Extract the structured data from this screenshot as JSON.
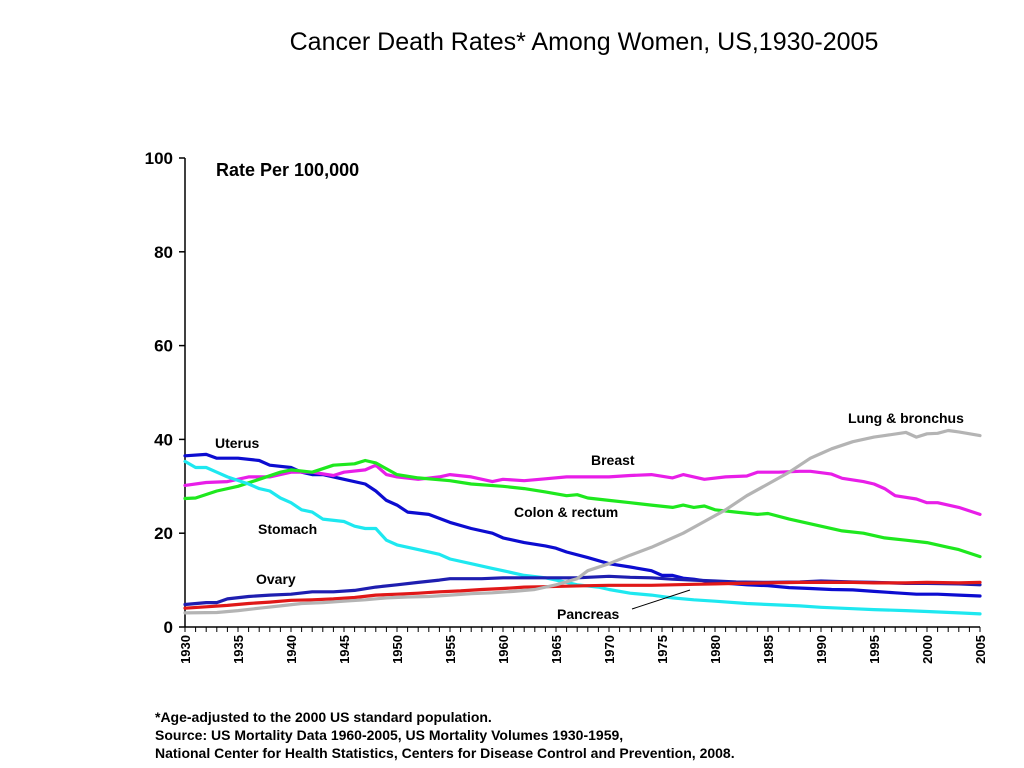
{
  "title": "Cancer Death Rates* Among Women, US,1930-2005",
  "footnote": {
    "line1": "*Age-adjusted to the 2000 US standard population.",
    "line2": "Source:  US Mortality Data 1960-2005, US Mortality Volumes 1930-1959,",
    "line3": "National Center for Health Statistics, Centers for Disease Control and Prevention, 2008."
  },
  "chart_data": {
    "type": "line",
    "title": "Cancer Death Rates* Among Women, US,1930-2005",
    "ylabel": "Rate Per 100,000",
    "xlabel": "",
    "ylim": [
      0,
      100
    ],
    "xlim": [
      1930,
      2005
    ],
    "yticks": [
      0,
      20,
      40,
      60,
      80,
      100
    ],
    "xticks": [
      1930,
      1935,
      1940,
      1945,
      1950,
      1955,
      1960,
      1965,
      1970,
      1975,
      1980,
      1985,
      1990,
      1995,
      2000,
      2005
    ],
    "grid": false,
    "legend": "inline labels",
    "series": [
      {
        "name": "Uterus",
        "color": "#0c0cd0",
        "points": [
          [
            1930,
            36.5
          ],
          [
            1932,
            36.8
          ],
          [
            1933,
            36
          ],
          [
            1935,
            36
          ],
          [
            1937,
            35.5
          ],
          [
            1938,
            34.5
          ],
          [
            1940,
            34
          ],
          [
            1941,
            33
          ],
          [
            1942,
            32.5
          ],
          [
            1943,
            32.5
          ],
          [
            1945,
            31.5
          ],
          [
            1947,
            30.5
          ],
          [
            1948,
            29
          ],
          [
            1949,
            27
          ],
          [
            1950,
            26
          ],
          [
            1951,
            24.5
          ],
          [
            1953,
            24
          ],
          [
            1955,
            22.3
          ],
          [
            1957,
            21
          ],
          [
            1959,
            20
          ],
          [
            1960,
            19
          ],
          [
            1962,
            18
          ],
          [
            1964,
            17.3
          ],
          [
            1965,
            16.8
          ],
          [
            1966,
            16
          ],
          [
            1968,
            14.8
          ],
          [
            1970,
            13.5
          ],
          [
            1972,
            12.8
          ],
          [
            1974,
            12
          ],
          [
            1975,
            11
          ],
          [
            1976,
            11
          ],
          [
            1977,
            10.4
          ],
          [
            1978,
            10.2
          ],
          [
            1980,
            9.5
          ],
          [
            1983,
            9
          ],
          [
            1985,
            8.8
          ],
          [
            1987,
            8.4
          ],
          [
            1989,
            8.2
          ],
          [
            1991,
            8
          ],
          [
            1993,
            7.9
          ],
          [
            1995,
            7.6
          ],
          [
            1997,
            7.3
          ],
          [
            1999,
            7
          ],
          [
            2001,
            7
          ],
          [
            2003,
            6.8
          ],
          [
            2005,
            6.6
          ]
        ]
      },
      {
        "name": "Breast",
        "color": "#e81ee8",
        "points": [
          [
            1930,
            30.2
          ],
          [
            1932,
            30.8
          ],
          [
            1934,
            31
          ],
          [
            1936,
            32
          ],
          [
            1938,
            32
          ],
          [
            1940,
            33
          ],
          [
            1942,
            33
          ],
          [
            1944,
            32.3
          ],
          [
            1945,
            33
          ],
          [
            1947,
            33.5
          ],
          [
            1948,
            34.5
          ],
          [
            1949,
            32.5
          ],
          [
            1950,
            32
          ],
          [
            1952,
            31.5
          ],
          [
            1954,
            32
          ],
          [
            1955,
            32.5
          ],
          [
            1957,
            32
          ],
          [
            1959,
            31
          ],
          [
            1960,
            31.5
          ],
          [
            1962,
            31.2
          ],
          [
            1964,
            31.6
          ],
          [
            1966,
            32
          ],
          [
            1968,
            32
          ],
          [
            1970,
            32
          ],
          [
            1972,
            32.3
          ],
          [
            1974,
            32.5
          ],
          [
            1976,
            31.8
          ],
          [
            1977,
            32.5
          ],
          [
            1979,
            31.5
          ],
          [
            1981,
            32
          ],
          [
            1983,
            32.2
          ],
          [
            1984,
            33
          ],
          [
            1986,
            33
          ],
          [
            1988,
            33.2
          ],
          [
            1989,
            33.2
          ],
          [
            1991,
            32.6
          ],
          [
            1992,
            31.7
          ],
          [
            1994,
            31
          ],
          [
            1995,
            30.5
          ],
          [
            1996,
            29.5
          ],
          [
            1997,
            28
          ],
          [
            1999,
            27.3
          ],
          [
            2000,
            26.5
          ],
          [
            2001,
            26.5
          ],
          [
            2003,
            25.5
          ],
          [
            2005,
            24
          ]
        ]
      },
      {
        "name": "Colon & rectum",
        "color": "#1ee81e",
        "points": [
          [
            1930,
            27.4
          ],
          [
            1931,
            27.5
          ],
          [
            1933,
            29
          ],
          [
            1935,
            30
          ],
          [
            1937,
            31.5
          ],
          [
            1939,
            33
          ],
          [
            1940,
            33.5
          ],
          [
            1942,
            33
          ],
          [
            1944,
            34.5
          ],
          [
            1946,
            34.8
          ],
          [
            1947,
            35.5
          ],
          [
            1948,
            35
          ],
          [
            1950,
            32.5
          ],
          [
            1952,
            31.8
          ],
          [
            1955,
            31.2
          ],
          [
            1957,
            30.5
          ],
          [
            1960,
            30
          ],
          [
            1962,
            29.5
          ],
          [
            1964,
            28.8
          ],
          [
            1966,
            28
          ],
          [
            1967,
            28.2
          ],
          [
            1968,
            27.5
          ],
          [
            1970,
            27
          ],
          [
            1972,
            26.5
          ],
          [
            1974,
            26
          ],
          [
            1976,
            25.5
          ],
          [
            1977,
            26
          ],
          [
            1978,
            25.5
          ],
          [
            1979,
            25.8
          ],
          [
            1980,
            25
          ],
          [
            1982,
            24.5
          ],
          [
            1984,
            24
          ],
          [
            1985,
            24.2
          ],
          [
            1987,
            23
          ],
          [
            1990,
            21.5
          ],
          [
            1992,
            20.5
          ],
          [
            1994,
            20
          ],
          [
            1996,
            19
          ],
          [
            1998,
            18.5
          ],
          [
            2000,
            18
          ],
          [
            2002,
            17
          ],
          [
            2003,
            16.5
          ],
          [
            2005,
            15
          ]
        ]
      },
      {
        "name": "Stomach",
        "color": "#1ee8f0",
        "points": [
          [
            1930,
            35.3
          ],
          [
            1931,
            34
          ],
          [
            1932,
            34
          ],
          [
            1933,
            33
          ],
          [
            1934,
            32
          ],
          [
            1936,
            30.5
          ],
          [
            1937,
            29.5
          ],
          [
            1938,
            29
          ],
          [
            1939,
            27.5
          ],
          [
            1940,
            26.5
          ],
          [
            1941,
            25
          ],
          [
            1942,
            24.5
          ],
          [
            1943,
            23
          ],
          [
            1945,
            22.5
          ],
          [
            1946,
            21.5
          ],
          [
            1947,
            21
          ],
          [
            1948,
            21
          ],
          [
            1949,
            18.5
          ],
          [
            1950,
            17.5
          ],
          [
            1952,
            16.5
          ],
          [
            1954,
            15.5
          ],
          [
            1955,
            14.5
          ],
          [
            1957,
            13.5
          ],
          [
            1959,
            12.5
          ],
          [
            1960,
            12
          ],
          [
            1962,
            11
          ],
          [
            1964,
            10.5
          ],
          [
            1965,
            10
          ],
          [
            1967,
            9
          ],
          [
            1969,
            8.5
          ],
          [
            1970,
            8
          ],
          [
            1972,
            7.2
          ],
          [
            1974,
            6.8
          ],
          [
            1976,
            6.2
          ],
          [
            1978,
            5.8
          ],
          [
            1980,
            5.5
          ],
          [
            1983,
            5
          ],
          [
            1985,
            4.8
          ],
          [
            1988,
            4.5
          ],
          [
            1990,
            4.2
          ],
          [
            1993,
            3.9
          ],
          [
            1995,
            3.7
          ],
          [
            1998,
            3.5
          ],
          [
            2000,
            3.3
          ],
          [
            2003,
            3
          ],
          [
            2005,
            2.8
          ]
        ]
      },
      {
        "name": "Ovary",
        "color": "#1e1eb0",
        "points": [
          [
            1930,
            4.8
          ],
          [
            1932,
            5.2
          ],
          [
            1933,
            5.2
          ],
          [
            1934,
            6
          ],
          [
            1936,
            6.5
          ],
          [
            1938,
            6.8
          ],
          [
            1940,
            7
          ],
          [
            1942,
            7.5
          ],
          [
            1944,
            7.5
          ],
          [
            1946,
            7.8
          ],
          [
            1948,
            8.5
          ],
          [
            1950,
            9
          ],
          [
            1952,
            9.5
          ],
          [
            1954,
            10
          ],
          [
            1955,
            10.3
          ],
          [
            1958,
            10.3
          ],
          [
            1960,
            10.5
          ],
          [
            1963,
            10.5
          ],
          [
            1965,
            10.5
          ],
          [
            1967,
            10.5
          ],
          [
            1970,
            10.8
          ],
          [
            1972,
            10.6
          ],
          [
            1974,
            10.5
          ],
          [
            1976,
            10.2
          ],
          [
            1978,
            10
          ],
          [
            1980,
            9.8
          ],
          [
            1982,
            9.6
          ],
          [
            1985,
            9.5
          ],
          [
            1988,
            9.6
          ],
          [
            1990,
            9.8
          ],
          [
            1993,
            9.6
          ],
          [
            1995,
            9.5
          ],
          [
            1998,
            9.3
          ],
          [
            2000,
            9.3
          ],
          [
            2003,
            9.2
          ],
          [
            2005,
            9
          ]
        ]
      },
      {
        "name": "Pancreas",
        "color": "#e01818",
        "points": [
          [
            1930,
            4
          ],
          [
            1932,
            4.3
          ],
          [
            1934,
            4.6
          ],
          [
            1936,
            5
          ],
          [
            1938,
            5.3
          ],
          [
            1940,
            5.7
          ],
          [
            1942,
            5.8
          ],
          [
            1944,
            6
          ],
          [
            1946,
            6.3
          ],
          [
            1948,
            6.8
          ],
          [
            1950,
            7
          ],
          [
            1952,
            7.2
          ],
          [
            1954,
            7.5
          ],
          [
            1956,
            7.7
          ],
          [
            1958,
            8
          ],
          [
            1960,
            8.2
          ],
          [
            1962,
            8.5
          ],
          [
            1964,
            8.6
          ],
          [
            1966,
            8.7
          ],
          [
            1968,
            8.8
          ],
          [
            1970,
            8.9
          ],
          [
            1972,
            8.9
          ],
          [
            1974,
            8.9
          ],
          [
            1976,
            9
          ],
          [
            1978,
            9.1
          ],
          [
            1980,
            9.2
          ],
          [
            1982,
            9.3
          ],
          [
            1985,
            9.4
          ],
          [
            1988,
            9.5
          ],
          [
            1990,
            9.5
          ],
          [
            1993,
            9.5
          ],
          [
            1995,
            9.4
          ],
          [
            1998,
            9.4
          ],
          [
            2000,
            9.5
          ],
          [
            2003,
            9.4
          ],
          [
            2005,
            9.5
          ]
        ]
      },
      {
        "name": "Lung & bronchus",
        "color": "#b4b4b4",
        "points": [
          [
            1930,
            3
          ],
          [
            1933,
            3.1
          ],
          [
            1935,
            3.5
          ],
          [
            1937,
            4
          ],
          [
            1939,
            4.5
          ],
          [
            1941,
            5
          ],
          [
            1943,
            5.2
          ],
          [
            1945,
            5.5
          ],
          [
            1947,
            5.8
          ],
          [
            1949,
            6.2
          ],
          [
            1951,
            6.4
          ],
          [
            1953,
            6.5
          ],
          [
            1955,
            6.8
          ],
          [
            1957,
            7.1
          ],
          [
            1959,
            7.3
          ],
          [
            1961,
            7.6
          ],
          [
            1963,
            8
          ],
          [
            1965,
            9
          ],
          [
            1967,
            10.3
          ],
          [
            1968,
            12
          ],
          [
            1970,
            13.5
          ],
          [
            1972,
            15.3
          ],
          [
            1974,
            17
          ],
          [
            1975,
            18
          ],
          [
            1977,
            20
          ],
          [
            1979,
            22.5
          ],
          [
            1981,
            25
          ],
          [
            1983,
            28
          ],
          [
            1985,
            30.5
          ],
          [
            1987,
            33
          ],
          [
            1989,
            36
          ],
          [
            1990,
            37
          ],
          [
            1991,
            38
          ],
          [
            1993,
            39.5
          ],
          [
            1995,
            40.5
          ],
          [
            1996,
            40.8
          ],
          [
            1998,
            41.5
          ],
          [
            1999,
            40.5
          ],
          [
            2000,
            41.2
          ],
          [
            2001,
            41.3
          ],
          [
            2002,
            41.9
          ],
          [
            2003,
            41.6
          ],
          [
            2005,
            40.8
          ]
        ]
      }
    ],
    "labels": [
      {
        "text": "Uterus",
        "series": "Uterus"
      },
      {
        "text": "Breast",
        "series": "Breast"
      },
      {
        "text": "Colon & rectum",
        "series": "Colon & rectum"
      },
      {
        "text": "Stomach",
        "series": "Stomach"
      },
      {
        "text": "Ovary",
        "series": "Ovary"
      },
      {
        "text": "Pancreas",
        "series": "Pancreas"
      },
      {
        "text": "Lung & bronchus",
        "series": "Lung & bronchus"
      }
    ]
  }
}
